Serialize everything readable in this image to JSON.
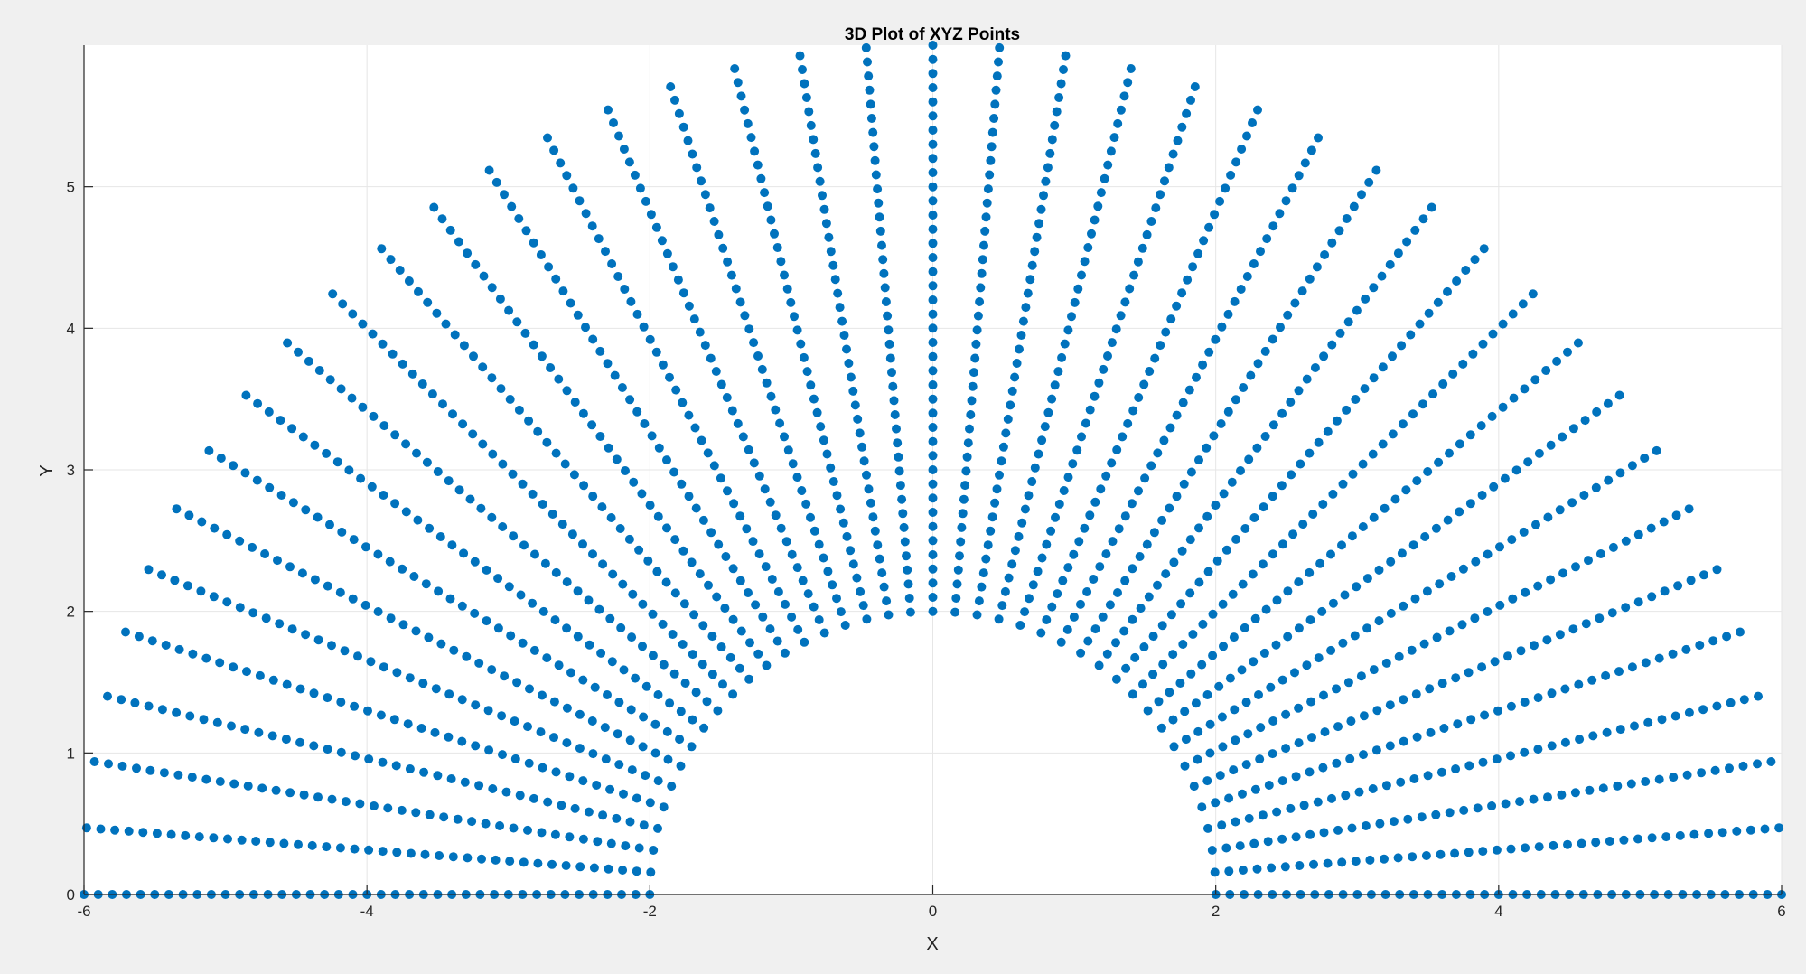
{
  "figure": {
    "background": "#f0f0f0",
    "axes_background": "#ffffff"
  },
  "chart_data": {
    "type": "scatter",
    "title": "3D Plot of XYZ Points",
    "xlabel": "X",
    "ylabel": "Y",
    "xlim": [
      -6,
      6
    ],
    "ylim": [
      0,
      6
    ],
    "xticks": [
      "-6",
      "-4",
      "-2",
      "0",
      "2",
      "4",
      "6"
    ],
    "yticks": [
      "0",
      "1",
      "2",
      "3",
      "4",
      "5"
    ],
    "grid": true,
    "legend": "none",
    "marker_color": "#0072bd",
    "grid_color": "#e6e6e6",
    "series": [
      {
        "pattern": "radial lines forming a half annulus",
        "inner_radius": 2,
        "outer_radius": 6,
        "angle_start_deg": 0,
        "angle_end_deg": 180,
        "angle_step_deg": 4.5,
        "ray_count": 41,
        "points_per_ray": 41
      }
    ]
  }
}
